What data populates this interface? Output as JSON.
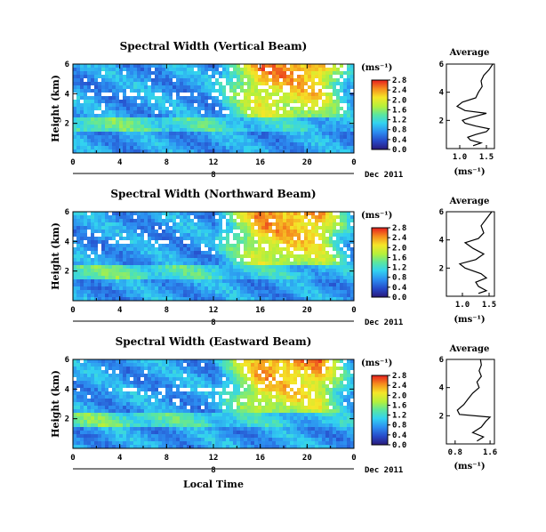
{
  "chart_data": [
    {
      "type": "heatmap",
      "title": "Spectral Width (Vertical Beam)",
      "ylabel": "Height (km)",
      "x_ticks": [
        "0",
        "4",
        "8",
        "12",
        "16",
        "20",
        "0"
      ],
      "xlim": [
        0,
        24
      ],
      "y_ticks": [
        "2",
        "4",
        "6"
      ],
      "ylim": [
        0,
        6
      ],
      "date_day": "8",
      "date_label": "Dec 2011",
      "colorbar_unit": "(ms⁻¹)",
      "colorbar_ticks": [
        "0.0",
        "0.4",
        "0.8",
        "1.2",
        "1.6",
        "2.0",
        "2.4",
        "2.8"
      ],
      "colorbar_range": [
        0,
        2.8
      ],
      "profile": {
        "title": "Average",
        "xlabel": "(ms⁻¹)",
        "x_ticks": [
          "1.0",
          "1.5"
        ],
        "xlim": [
          0.75,
          1.65
        ],
        "y_ticks": [
          "2",
          "4",
          "6"
        ],
        "ylim": [
          0,
          6
        ],
        "points": [
          [
            1.25,
            0.2
          ],
          [
            1.4,
            0.4
          ],
          [
            1.2,
            0.6
          ],
          [
            1.15,
            0.8
          ],
          [
            1.3,
            1.0
          ],
          [
            1.5,
            1.2
          ],
          [
            1.55,
            1.4
          ],
          [
            1.3,
            1.6
          ],
          [
            1.1,
            1.8
          ],
          [
            1.05,
            2.0
          ],
          [
            1.2,
            2.2
          ],
          [
            1.5,
            2.5
          ],
          [
            1.1,
            2.7
          ],
          [
            0.95,
            3.0
          ],
          [
            1.05,
            3.3
          ],
          [
            1.3,
            3.6
          ],
          [
            1.35,
            4.0
          ],
          [
            1.42,
            4.4
          ],
          [
            1.4,
            4.8
          ],
          [
            1.45,
            5.2
          ],
          [
            1.55,
            5.6
          ],
          [
            1.62,
            6.0
          ]
        ]
      }
    },
    {
      "type": "heatmap",
      "title": "Spectral Width (Northward Beam)",
      "ylabel": "Height (km)",
      "x_ticks": [
        "0",
        "4",
        "8",
        "12",
        "16",
        "20",
        "0"
      ],
      "xlim": [
        0,
        24
      ],
      "y_ticks": [
        "2",
        "4",
        "6"
      ],
      "ylim": [
        0,
        6
      ],
      "date_day": "8",
      "date_label": "Dec 2011",
      "colorbar_unit": "(ms⁻¹)",
      "colorbar_ticks": [
        "0.0",
        "0.4",
        "0.8",
        "1.2",
        "1.6",
        "2.0",
        "2.4",
        "2.8"
      ],
      "colorbar_range": [
        0,
        2.8
      ],
      "profile": {
        "title": "Average",
        "xlabel": "(ms⁻¹)",
        "x_ticks": [
          "1.0",
          "1.5"
        ],
        "xlim": [
          0.7,
          1.6
        ],
        "y_ticks": [
          "2",
          "4",
          "6"
        ],
        "ylim": [
          0,
          6
        ],
        "points": [
          [
            1.3,
            0.2
          ],
          [
            1.45,
            0.4
          ],
          [
            1.3,
            0.7
          ],
          [
            1.25,
            1.0
          ],
          [
            1.45,
            1.3
          ],
          [
            1.35,
            1.6
          ],
          [
            1.05,
            2.0
          ],
          [
            0.95,
            2.3
          ],
          [
            1.25,
            2.6
          ],
          [
            1.4,
            3.0
          ],
          [
            1.2,
            3.4
          ],
          [
            1.05,
            3.8
          ],
          [
            1.3,
            4.1
          ],
          [
            1.4,
            4.5
          ],
          [
            1.35,
            5.0
          ],
          [
            1.45,
            5.5
          ],
          [
            1.55,
            6.0
          ]
        ]
      }
    },
    {
      "type": "heatmap",
      "title": "Spectral Width (Eastward Beam)",
      "ylabel": "Height (km)",
      "x_ticks": [
        "0",
        "4",
        "8",
        "12",
        "16",
        "20",
        "0"
      ],
      "xlim": [
        0,
        24
      ],
      "y_ticks": [
        "2",
        "4",
        "6"
      ],
      "ylim": [
        0,
        6
      ],
      "date_day": "8",
      "date_label": "Dec 2011",
      "colorbar_unit": "(ms⁻¹)",
      "colorbar_ticks": [
        "0.0",
        "0.4",
        "0.8",
        "1.2",
        "1.6",
        "2.0",
        "2.4",
        "2.8"
      ],
      "colorbar_range": [
        0,
        2.8
      ],
      "profile": {
        "title": "Average",
        "xlabel": "(ms⁻¹)",
        "x_ticks": [
          "0.8",
          "1.6"
        ],
        "xlim": [
          0.6,
          1.7
        ],
        "y_ticks": [
          "2",
          "4",
          "6"
        ],
        "ylim": [
          0,
          6
        ],
        "points": [
          [
            1.3,
            0.2
          ],
          [
            1.45,
            0.5
          ],
          [
            1.2,
            0.8
          ],
          [
            1.4,
            1.2
          ],
          [
            1.5,
            1.6
          ],
          [
            1.6,
            1.9
          ],
          [
            0.9,
            2.1
          ],
          [
            0.85,
            2.4
          ],
          [
            1.0,
            2.8
          ],
          [
            1.1,
            3.2
          ],
          [
            1.2,
            3.6
          ],
          [
            1.35,
            4.0
          ],
          [
            1.3,
            4.4
          ],
          [
            1.4,
            4.8
          ],
          [
            1.35,
            5.2
          ],
          [
            1.4,
            5.6
          ],
          [
            1.38,
            6.0
          ]
        ]
      }
    }
  ],
  "xlabel": "Local Time"
}
